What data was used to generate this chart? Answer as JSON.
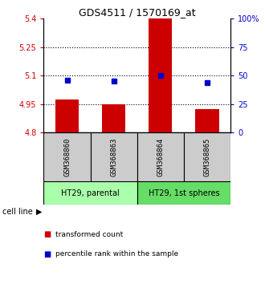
{
  "title": "GDS4511 / 1570169_at",
  "samples": [
    "GSM368860",
    "GSM368863",
    "GSM368864",
    "GSM368865"
  ],
  "red_values": [
    4.975,
    4.95,
    5.4,
    4.925
  ],
  "blue_values": [
    5.075,
    5.07,
    5.1,
    5.065
  ],
  "ylim_left": [
    4.8,
    5.4
  ],
  "ylim_right": [
    0,
    100
  ],
  "yticks_left": [
    4.8,
    4.95,
    5.1,
    5.25,
    5.4
  ],
  "ytick_labels_left": [
    "4.8",
    "4.95",
    "5.1",
    "5.25",
    "5.4"
  ],
  "yticks_right": [
    0,
    25,
    50,
    75,
    100
  ],
  "ytick_labels_right": [
    "0",
    "25",
    "50",
    "75",
    "100%"
  ],
  "hlines": [
    4.95,
    5.1,
    5.25
  ],
  "cell_line_groups": [
    {
      "label": "HT29, parental",
      "samples": [
        0,
        1
      ],
      "color": "#aaffaa"
    },
    {
      "label": "HT29, 1st spheres",
      "samples": [
        2,
        3
      ],
      "color": "#66dd66"
    }
  ],
  "red_color": "#cc0000",
  "blue_color": "#0000cc",
  "bar_width": 0.5,
  "sample_box_color": "#cccccc",
  "legend_red": "transformed count",
  "legend_blue": "percentile rank within the sample",
  "left_tick_color": "#cc0000",
  "right_tick_color": "#0000cc",
  "cell_line_label": "cell line"
}
